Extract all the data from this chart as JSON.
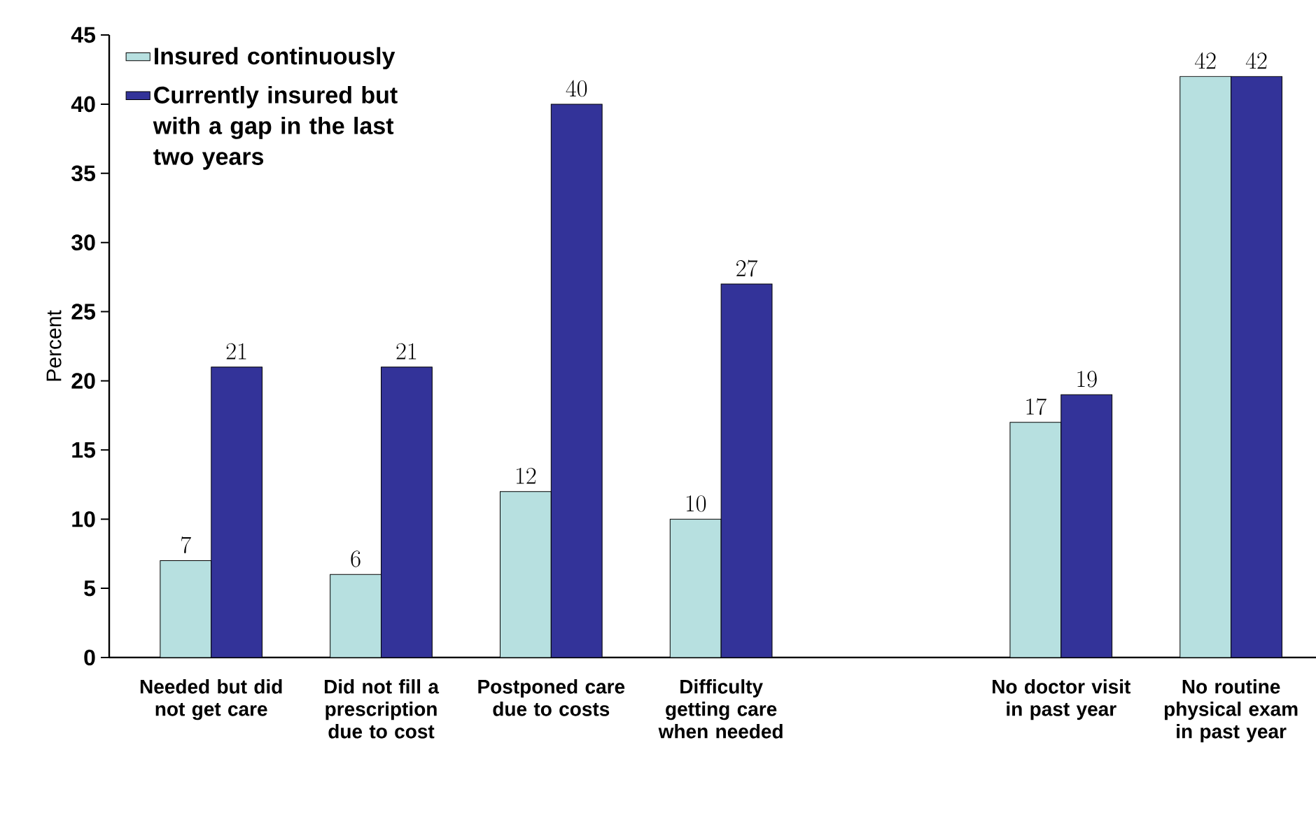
{
  "chart_data": {
    "type": "bar",
    "ylabel": "Percent",
    "categories": [
      "Needed but did not get care",
      "Did not fill a prescription due to cost",
      "Postponed care due to costs",
      "Difficulty getting care when needed",
      null,
      "No doctor visit in past year",
      "No routine physical exam in past year"
    ],
    "series": [
      {
        "name": "Insured continuously",
        "color": "#b7e0e0",
        "values": [
          7,
          6,
          12,
          10,
          null,
          17,
          42
        ]
      },
      {
        "name": "Currently insured but with a gap in the last two years",
        "color": "#333399",
        "values": [
          21,
          21,
          40,
          27,
          null,
          19,
          42
        ]
      }
    ],
    "ylim": [
      0,
      45
    ],
    "yticks": [
      0,
      5,
      10,
      15,
      20,
      25,
      30,
      35,
      40,
      45
    ],
    "data_labels": true,
    "legend": "top left",
    "grid": false
  }
}
